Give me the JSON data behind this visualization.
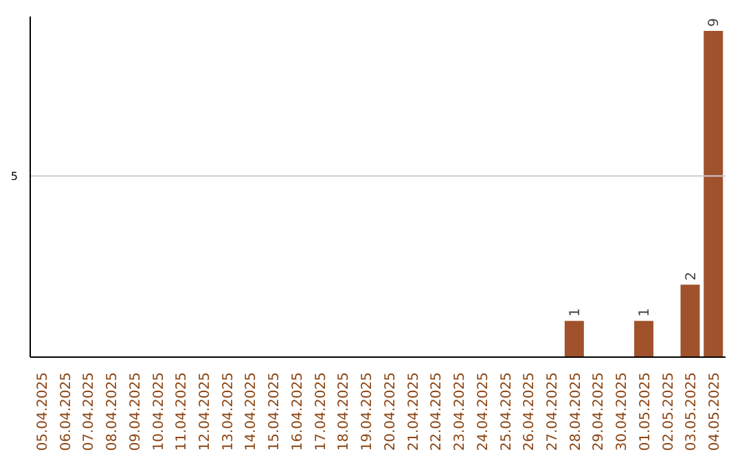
{
  "chart_data": {
    "type": "bar",
    "categories": [
      "05.04.2025",
      "06.04.2025",
      "07.04.2025",
      "08.04.2025",
      "09.04.2025",
      "10.04.2025",
      "11.04.2025",
      "12.04.2025",
      "13.04.2025",
      "14.04.2025",
      "15.04.2025",
      "16.04.2025",
      "17.04.2025",
      "18.04.2025",
      "19.04.2025",
      "20.04.2025",
      "21.04.2025",
      "22.04.2025",
      "23.04.2025",
      "24.04.2025",
      "25.04.2025",
      "26.04.2025",
      "27.04.2025",
      "28.04.2025",
      "29.04.2025",
      "30.04.2025",
      "01.05.2025",
      "02.05.2025",
      "03.05.2025",
      "04.05.2025"
    ],
    "values": [
      null,
      null,
      null,
      null,
      null,
      null,
      null,
      null,
      null,
      null,
      null,
      null,
      null,
      null,
      null,
      null,
      null,
      null,
      null,
      null,
      null,
      null,
      null,
      1,
      null,
      null,
      1,
      null,
      2,
      9
    ],
    "data_labels": true,
    "color": "#a0522d",
    "ylim": [
      0,
      9.4
    ],
    "yticks": [
      5
    ],
    "grid": "y"
  }
}
